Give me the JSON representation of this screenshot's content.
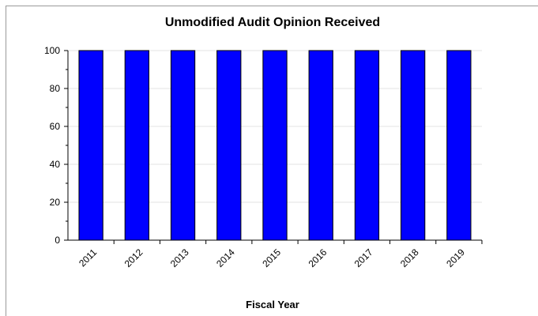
{
  "chart_data": {
    "type": "bar",
    "title": "Unmodified Audit Opinion Received",
    "xlabel": "Fiscal Year",
    "ylabel": "",
    "categories": [
      "2011",
      "2012",
      "2013",
      "2014",
      "2015",
      "2016",
      "2017",
      "2018",
      "2019"
    ],
    "values": [
      100,
      100,
      100,
      100,
      100,
      100,
      100,
      100,
      100
    ],
    "ylim": [
      0,
      100
    ],
    "yticks": [
      0,
      20,
      40,
      60,
      80,
      100
    ],
    "bar_color": "#0000ff",
    "grid": true,
    "legend": "none"
  }
}
